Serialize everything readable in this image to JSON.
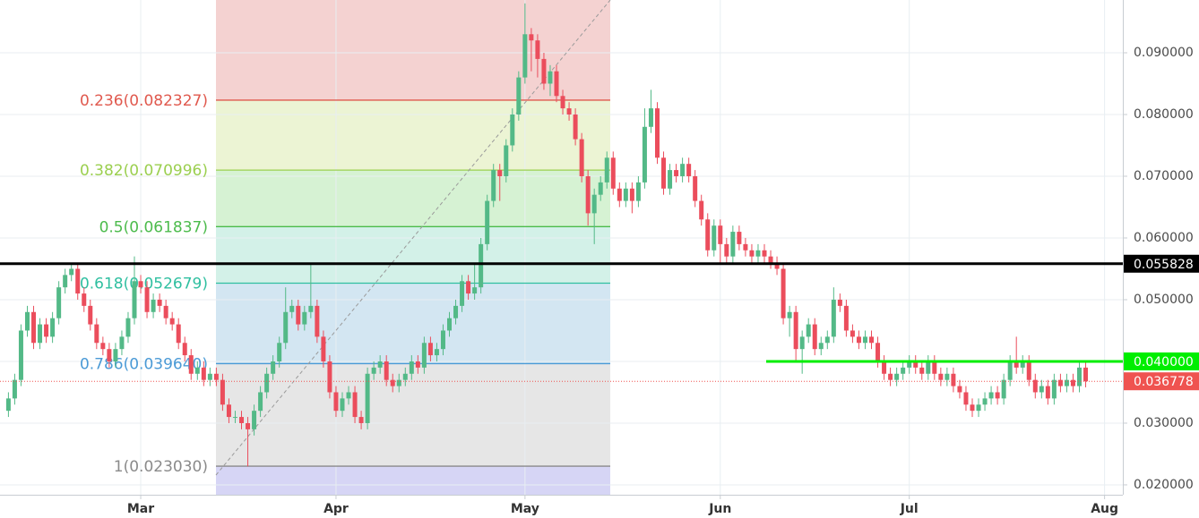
{
  "chart_data": {
    "type": "candlestick",
    "categories": [
      null,
      null,
      null,
      null,
      null,
      null,
      null,
      null,
      null,
      null,
      null,
      null,
      null,
      null,
      null,
      null,
      null,
      null,
      null,
      null,
      null,
      "Mar",
      null,
      null,
      null,
      null,
      null,
      null,
      null,
      null,
      null,
      null,
      null,
      null,
      null,
      null,
      null,
      null,
      null,
      null,
      null,
      null,
      null,
      null,
      null,
      null,
      null,
      null,
      null,
      null,
      null,
      null,
      "Apr",
      null,
      null,
      null,
      null,
      null,
      null,
      null,
      null,
      null,
      null,
      null,
      null,
      null,
      null,
      null,
      null,
      null,
      null,
      null,
      null,
      null,
      null,
      null,
      null,
      null,
      null,
      null,
      null,
      null,
      "May",
      null,
      null,
      null,
      null,
      null,
      null,
      null,
      null,
      null,
      null,
      null,
      null,
      null,
      null,
      null,
      null,
      null,
      null,
      null,
      null,
      null,
      null,
      null,
      null,
      null,
      null,
      null,
      null,
      null,
      null,
      "Jun",
      null,
      null,
      null,
      null,
      null,
      null,
      null,
      null,
      null,
      null,
      null,
      null,
      null,
      null,
      null,
      null,
      null,
      null,
      null,
      null,
      null,
      null,
      null,
      null,
      null,
      null,
      null,
      null,
      null,
      "Jul",
      null,
      null,
      null,
      null,
      null,
      null,
      null,
      null,
      null,
      null,
      null,
      null,
      null,
      null,
      null,
      null,
      null,
      null,
      null,
      null,
      null,
      null,
      null,
      null,
      null,
      null,
      null,
      null,
      null,
      null,
      "Aug"
    ],
    "candles": [
      [
        0.032,
        0.035,
        0.031,
        0.034
      ],
      [
        0.034,
        0.038,
        0.033,
        0.037
      ],
      [
        0.037,
        0.046,
        0.036,
        0.045
      ],
      [
        0.045,
        0.049,
        0.044,
        0.048
      ],
      [
        0.048,
        0.049,
        0.042,
        0.043
      ],
      [
        0.043,
        0.047,
        0.042,
        0.046
      ],
      [
        0.046,
        0.047,
        0.043,
        0.044
      ],
      [
        0.044,
        0.048,
        0.043,
        0.047
      ],
      [
        0.047,
        0.053,
        0.046,
        0.052
      ],
      [
        0.052,
        0.055,
        0.051,
        0.054
      ],
      [
        0.054,
        0.056,
        0.053,
        0.055
      ],
      [
        0.055,
        0.056,
        0.05,
        0.051
      ],
      [
        0.051,
        0.052,
        0.048,
        0.049
      ],
      [
        0.049,
        0.05,
        0.045,
        0.046
      ],
      [
        0.046,
        0.047,
        0.042,
        0.043
      ],
      [
        0.043,
        0.044,
        0.041,
        0.042
      ],
      [
        0.042,
        0.043,
        0.039,
        0.04
      ],
      [
        0.04,
        0.043,
        0.039,
        0.042
      ],
      [
        0.042,
        0.045,
        0.041,
        0.044
      ],
      [
        0.044,
        0.048,
        0.043,
        0.047
      ],
      [
        0.047,
        0.057,
        0.046,
        0.053
      ],
      [
        0.053,
        0.054,
        0.051,
        0.052
      ],
      [
        0.052,
        0.053,
        0.047,
        0.048
      ],
      [
        0.048,
        0.051,
        0.047,
        0.05
      ],
      [
        0.05,
        0.051,
        0.048,
        0.049
      ],
      [
        0.049,
        0.05,
        0.046,
        0.047
      ],
      [
        0.047,
        0.048,
        0.045,
        0.046
      ],
      [
        0.046,
        0.047,
        0.042,
        0.043
      ],
      [
        0.043,
        0.044,
        0.04,
        0.041
      ],
      [
        0.041,
        0.042,
        0.037,
        0.038
      ],
      [
        0.038,
        0.04,
        0.037,
        0.039
      ],
      [
        0.039,
        0.04,
        0.036,
        0.037
      ],
      [
        0.037,
        0.039,
        0.036,
        0.038
      ],
      [
        0.038,
        0.039,
        0.036,
        0.037
      ],
      [
        0.037,
        0.038,
        0.032,
        0.033
      ],
      [
        0.033,
        0.034,
        0.03,
        0.031
      ],
      [
        0.031,
        0.032,
        0.03,
        0.031
      ],
      [
        0.031,
        0.032,
        0.029,
        0.03
      ],
      [
        0.03,
        0.031,
        0.023,
        0.029
      ],
      [
        0.029,
        0.033,
        0.028,
        0.032
      ],
      [
        0.032,
        0.036,
        0.031,
        0.035
      ],
      [
        0.035,
        0.039,
        0.034,
        0.038
      ],
      [
        0.038,
        0.041,
        0.037,
        0.04
      ],
      [
        0.04,
        0.044,
        0.039,
        0.043
      ],
      [
        0.043,
        0.052,
        0.042,
        0.048
      ],
      [
        0.048,
        0.05,
        0.047,
        0.049
      ],
      [
        0.049,
        0.05,
        0.045,
        0.046
      ],
      [
        0.046,
        0.049,
        0.045,
        0.048
      ],
      [
        0.048,
        0.056,
        0.047,
        0.049
      ],
      [
        0.049,
        0.05,
        0.043,
        0.044
      ],
      [
        0.044,
        0.045,
        0.039,
        0.04
      ],
      [
        0.04,
        0.041,
        0.034,
        0.035
      ],
      [
        0.035,
        0.036,
        0.031,
        0.032
      ],
      [
        0.032,
        0.035,
        0.031,
        0.034
      ],
      [
        0.034,
        0.036,
        0.033,
        0.035
      ],
      [
        0.035,
        0.036,
        0.03,
        0.031
      ],
      [
        0.031,
        0.032,
        0.029,
        0.03
      ],
      [
        0.03,
        0.039,
        0.029,
        0.038
      ],
      [
        0.038,
        0.04,
        0.037,
        0.039
      ],
      [
        0.039,
        0.041,
        0.038,
        0.04
      ],
      [
        0.04,
        0.041,
        0.036,
        0.037
      ],
      [
        0.037,
        0.038,
        0.035,
        0.036
      ],
      [
        0.036,
        0.038,
        0.035,
        0.037
      ],
      [
        0.037,
        0.039,
        0.036,
        0.038
      ],
      [
        0.038,
        0.041,
        0.037,
        0.04
      ],
      [
        0.04,
        0.041,
        0.038,
        0.039
      ],
      [
        0.039,
        0.044,
        0.038,
        0.043
      ],
      [
        0.043,
        0.044,
        0.04,
        0.041
      ],
      [
        0.041,
        0.043,
        0.04,
        0.042
      ],
      [
        0.042,
        0.046,
        0.041,
        0.045
      ],
      [
        0.045,
        0.048,
        0.044,
        0.047
      ],
      [
        0.047,
        0.05,
        0.046,
        0.049
      ],
      [
        0.049,
        0.054,
        0.048,
        0.053
      ],
      [
        0.053,
        0.054,
        0.05,
        0.051
      ],
      [
        0.051,
        0.056,
        0.05,
        0.052
      ],
      [
        0.052,
        0.06,
        0.051,
        0.059
      ],
      [
        0.059,
        0.067,
        0.058,
        0.066
      ],
      [
        0.066,
        0.072,
        0.065,
        0.071
      ],
      [
        0.071,
        0.072,
        0.066,
        0.07
      ],
      [
        0.07,
        0.076,
        0.069,
        0.075
      ],
      [
        0.075,
        0.081,
        0.074,
        0.08
      ],
      [
        0.08,
        0.087,
        0.079,
        0.086
      ],
      [
        0.086,
        0.098,
        0.085,
        0.093
      ],
      [
        0.093,
        0.094,
        0.087,
        0.092
      ],
      [
        0.092,
        0.093,
        0.086,
        0.089
      ],
      [
        0.089,
        0.09,
        0.084,
        0.085
      ],
      [
        0.085,
        0.088,
        0.083,
        0.087
      ],
      [
        0.087,
        0.088,
        0.082,
        0.083
      ],
      [
        0.083,
        0.084,
        0.08,
        0.081
      ],
      [
        0.081,
        0.082,
        0.079,
        0.08
      ],
      [
        0.08,
        0.081,
        0.075,
        0.076
      ],
      [
        0.076,
        0.077,
        0.069,
        0.07
      ],
      [
        0.07,
        0.071,
        0.062,
        0.064
      ],
      [
        0.064,
        0.068,
        0.059,
        0.067
      ],
      [
        0.067,
        0.07,
        0.066,
        0.069
      ],
      [
        0.069,
        0.074,
        0.068,
        0.073
      ],
      [
        0.073,
        0.074,
        0.067,
        0.068
      ],
      [
        0.068,
        0.069,
        0.065,
        0.066
      ],
      [
        0.066,
        0.069,
        0.065,
        0.068
      ],
      [
        0.068,
        0.069,
        0.064,
        0.066
      ],
      [
        0.066,
        0.07,
        0.065,
        0.069
      ],
      [
        0.069,
        0.081,
        0.068,
        0.078
      ],
      [
        0.078,
        0.084,
        0.077,
        0.081
      ],
      [
        0.081,
        0.082,
        0.072,
        0.073
      ],
      [
        0.073,
        0.074,
        0.067,
        0.068
      ],
      [
        0.068,
        0.072,
        0.067,
        0.071
      ],
      [
        0.071,
        0.072,
        0.069,
        0.07
      ],
      [
        0.07,
        0.073,
        0.069,
        0.072
      ],
      [
        0.072,
        0.073,
        0.069,
        0.07
      ],
      [
        0.07,
        0.071,
        0.065,
        0.066
      ],
      [
        0.066,
        0.067,
        0.062,
        0.063
      ],
      [
        0.063,
        0.064,
        0.057,
        0.058
      ],
      [
        0.058,
        0.063,
        0.057,
        0.062
      ],
      [
        0.062,
        0.063,
        0.056,
        0.059
      ],
      [
        0.059,
        0.06,
        0.056,
        0.057
      ],
      [
        0.057,
        0.062,
        0.056,
        0.061
      ],
      [
        0.061,
        0.062,
        0.058,
        0.059
      ],
      [
        0.059,
        0.06,
        0.057,
        0.058
      ],
      [
        0.058,
        0.059,
        0.056,
        0.057
      ],
      [
        0.057,
        0.059,
        0.056,
        0.058
      ],
      [
        0.058,
        0.059,
        0.056,
        0.057
      ],
      [
        0.057,
        0.058,
        0.055,
        0.056
      ],
      [
        0.056,
        0.057,
        0.054,
        0.055
      ],
      [
        0.055,
        0.056,
        0.046,
        0.047
      ],
      [
        0.047,
        0.049,
        0.044,
        0.048
      ],
      [
        0.048,
        0.049,
        0.04,
        0.042
      ],
      [
        0.042,
        0.045,
        0.038,
        0.044
      ],
      [
        0.044,
        0.047,
        0.043,
        0.046
      ],
      [
        0.046,
        0.047,
        0.041,
        0.042
      ],
      [
        0.042,
        0.044,
        0.041,
        0.043
      ],
      [
        0.043,
        0.045,
        0.042,
        0.044
      ],
      [
        0.044,
        0.052,
        0.043,
        0.05
      ],
      [
        0.05,
        0.051,
        0.048,
        0.049
      ],
      [
        0.049,
        0.05,
        0.044,
        0.045
      ],
      [
        0.045,
        0.046,
        0.043,
        0.044
      ],
      [
        0.044,
        0.045,
        0.042,
        0.043
      ],
      [
        0.043,
        0.045,
        0.042,
        0.044
      ],
      [
        0.044,
        0.045,
        0.042,
        0.043
      ],
      [
        0.043,
        0.044,
        0.039,
        0.04
      ],
      [
        0.04,
        0.041,
        0.037,
        0.038
      ],
      [
        0.038,
        0.039,
        0.036,
        0.037
      ],
      [
        0.037,
        0.039,
        0.036,
        0.038
      ],
      [
        0.038,
        0.04,
        0.037,
        0.039
      ],
      [
        0.039,
        0.041,
        0.038,
        0.04
      ],
      [
        0.04,
        0.041,
        0.038,
        0.039
      ],
      [
        0.039,
        0.04,
        0.037,
        0.038
      ],
      [
        0.038,
        0.041,
        0.037,
        0.04
      ],
      [
        0.04,
        0.041,
        0.037,
        0.038
      ],
      [
        0.038,
        0.039,
        0.036,
        0.037
      ],
      [
        0.037,
        0.039,
        0.036,
        0.038
      ],
      [
        0.038,
        0.039,
        0.035,
        0.036
      ],
      [
        0.036,
        0.037,
        0.034,
        0.035
      ],
      [
        0.035,
        0.036,
        0.032,
        0.033
      ],
      [
        0.033,
        0.034,
        0.031,
        0.032
      ],
      [
        0.032,
        0.034,
        0.031,
        0.033
      ],
      [
        0.033,
        0.035,
        0.032,
        0.034
      ],
      [
        0.034,
        0.036,
        0.033,
        0.035
      ],
      [
        0.035,
        0.036,
        0.033,
        0.034
      ],
      [
        0.034,
        0.038,
        0.033,
        0.037
      ],
      [
        0.037,
        0.041,
        0.036,
        0.04
      ],
      [
        0.04,
        0.044,
        0.038,
        0.039
      ],
      [
        0.039,
        0.041,
        0.038,
        0.04
      ],
      [
        0.04,
        0.041,
        0.036,
        0.037
      ],
      [
        0.037,
        0.038,
        0.034,
        0.035
      ],
      [
        0.035,
        0.037,
        0.034,
        0.036
      ],
      [
        0.036,
        0.037,
        0.033,
        0.034
      ],
      [
        0.034,
        0.038,
        0.033,
        0.037
      ],
      [
        0.037,
        0.038,
        0.035,
        0.036
      ],
      [
        0.036,
        0.038,
        0.035,
        0.037
      ],
      [
        0.037,
        0.038,
        0.035,
        0.036
      ],
      [
        0.036,
        0.04,
        0.035,
        0.039
      ],
      [
        0.039,
        0.04,
        0.0358,
        0.036778
      ],
      null,
      null,
      null
    ],
    "up_color": "#53b987",
    "down_color": "#eb4d5c",
    "ylim": [
      0.0184,
      0.09855
    ],
    "yticks": [
      {
        "value": 0.02,
        "label": "0.020000"
      },
      {
        "value": 0.03,
        "label": "0.030000"
      },
      {
        "value": 0.04,
        "label": "0.040000"
      },
      {
        "value": 0.05,
        "label": "0.050000"
      },
      {
        "value": 0.06,
        "label": "0.060000"
      },
      {
        "value": 0.07,
        "label": "0.070000"
      },
      {
        "value": 0.08,
        "label": "0.080000"
      },
      {
        "value": 0.09,
        "label": "0.090000"
      }
    ],
    "grid": true,
    "fib_levels": [
      {
        "label": "0.236(0.082327)",
        "value": 0.082327,
        "color": "#e0594e"
      },
      {
        "label": "0.382(0.070996)",
        "value": 0.070996,
        "color": "#9bcf4f"
      },
      {
        "label": "0.5(0.061837)",
        "value": 0.061837,
        "color": "#4cbb4c"
      },
      {
        "label": "0.618(0.052679)",
        "value": 0.052679,
        "color": "#2fbfa0"
      },
      {
        "label": "0.786(0.039640)",
        "value": 0.03964,
        "color": "#4a9ad6"
      },
      {
        "label": "1(0.023030)",
        "value": 0.02303,
        "color": "#8a8a8a"
      }
    ],
    "price_lines": [
      {
        "value": 0.055828,
        "color": "#000000"
      },
      {
        "value": 0.04,
        "label": "0.040000",
        "color": "#00ee00"
      },
      {
        "value": 0.036778,
        "color": "#ef5350"
      }
    ]
  }
}
